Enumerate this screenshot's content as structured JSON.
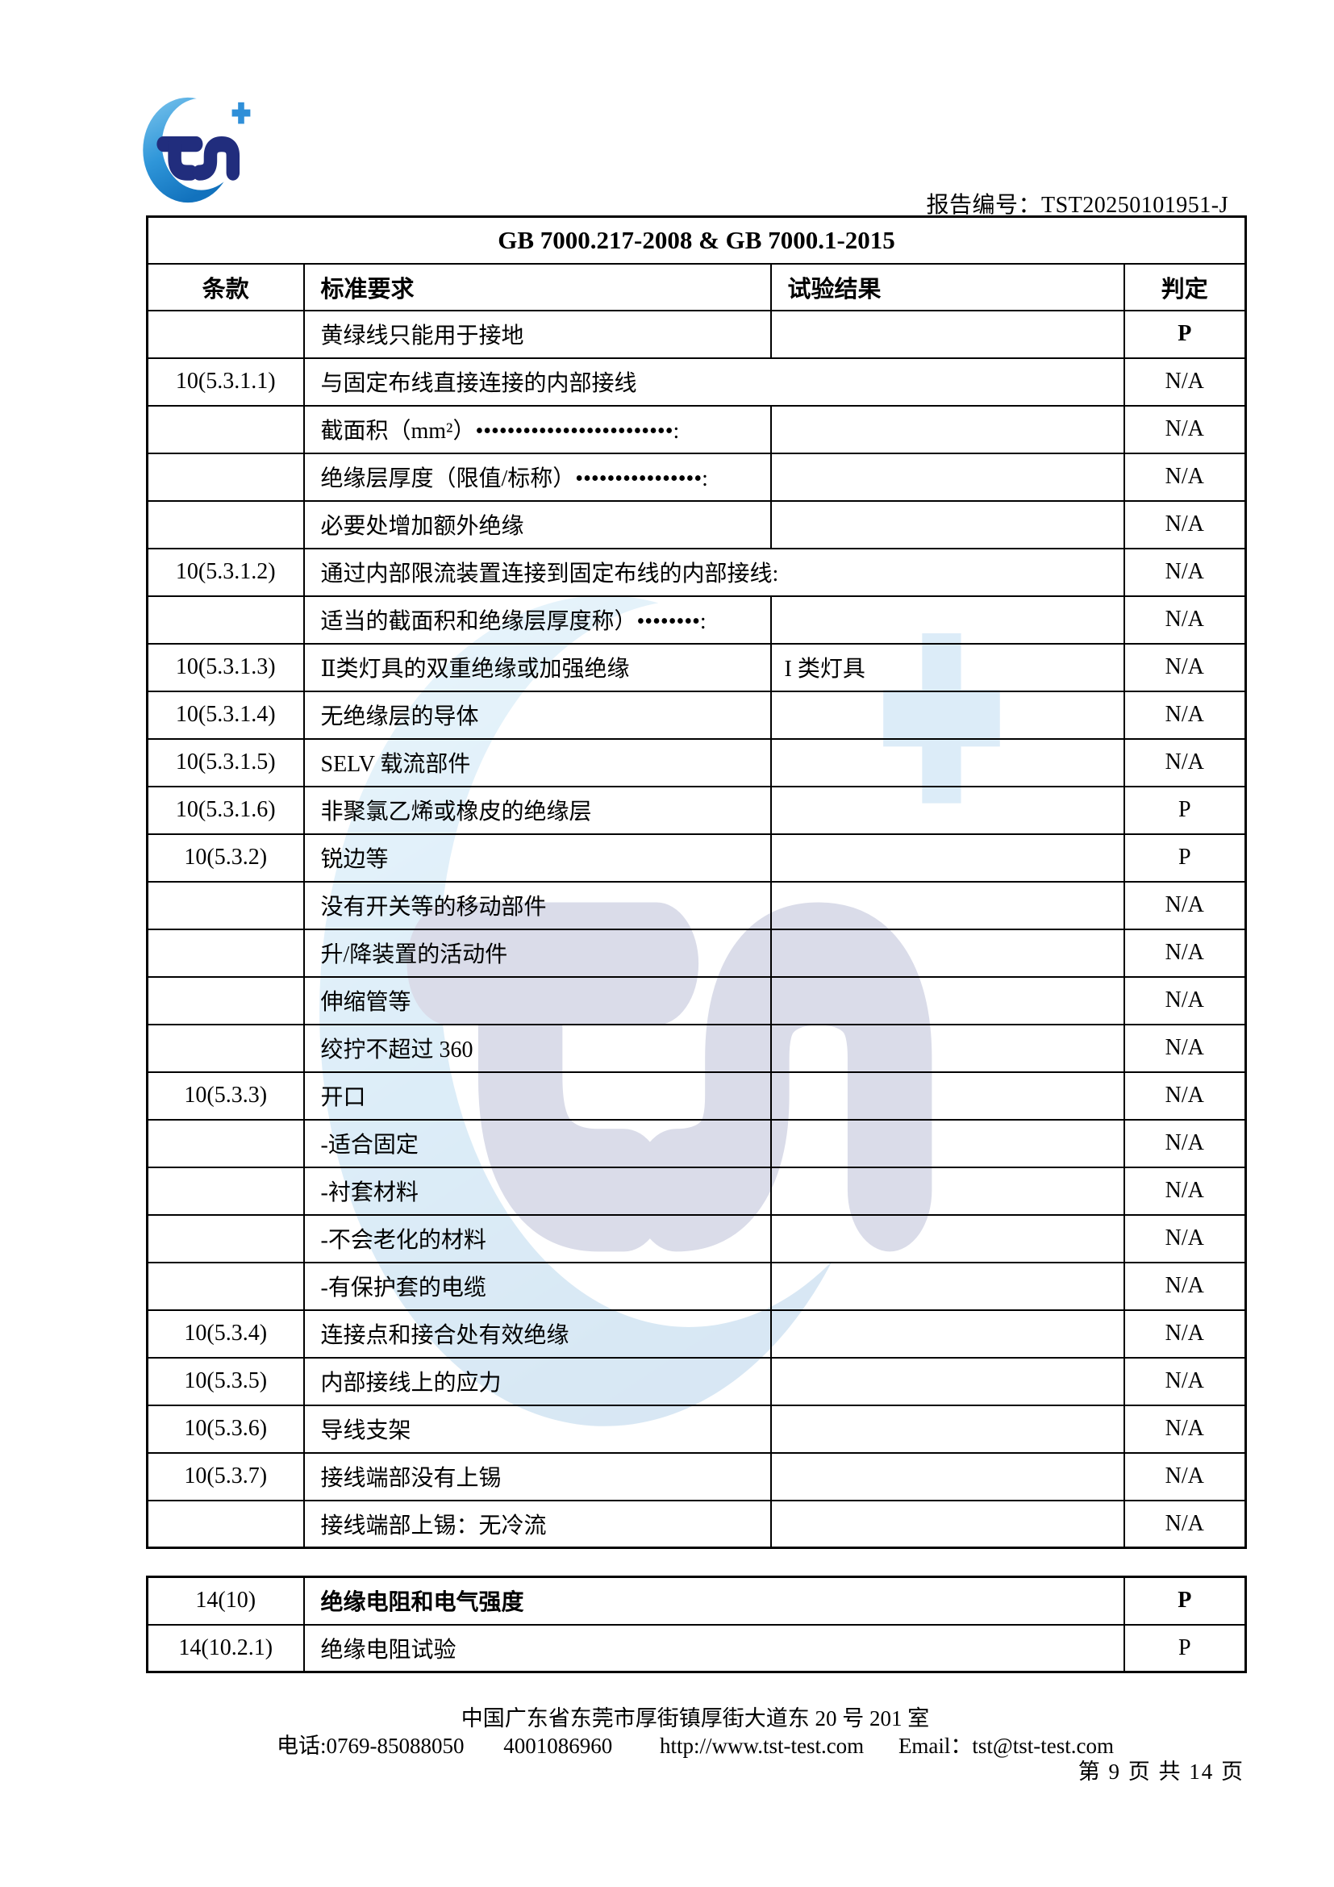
{
  "header": {
    "report_label": "报告编号：",
    "report_no": "TST20250101951-J"
  },
  "logo": {
    "name": "TST certification logo",
    "plus_glyph": "+"
  },
  "colors": {
    "logo_gradient_light": "#7cc5ed",
    "logo_gradient_mid": "#2f96d9",
    "logo_gradient_deep": "#1272bd",
    "logo_monogram_navy": "#212d7d",
    "logo_plus_blue": "#2f8fd8",
    "text_ink": "#000000"
  },
  "table1": {
    "title": "GB 7000.217-2008 & GB 7000.1-2015",
    "columns": [
      "条款",
      "标准要求",
      "试验结果",
      "判定"
    ],
    "rows": [
      {
        "clause": "",
        "req": "黄绿线只能用于接地",
        "result": "",
        "verdict": "P",
        "verdict_bold": true
      },
      {
        "clause": "10(5.3.1.1)",
        "req": "与固定布线直接连接的内部接线",
        "span": true,
        "verdict": "N/A"
      },
      {
        "clause": "",
        "req": "截面积（mm²）•••••••••••••••••••••••••:",
        "result": "",
        "verdict": "N/A"
      },
      {
        "clause": "",
        "req": "绝缘层厚度（限值/标称）••••••••••••••••:",
        "result": "",
        "verdict": "N/A"
      },
      {
        "clause": "",
        "req": "必要处增加额外绝缘",
        "result": "",
        "verdict": "N/A"
      },
      {
        "clause": "10(5.3.1.2)",
        "req": "通过内部限流装置连接到固定布线的内部接线:",
        "span": true,
        "verdict": "N/A"
      },
      {
        "clause": "",
        "req": "适当的截面积和绝缘层厚度称）••••••••:",
        "result": "",
        "verdict": "N/A"
      },
      {
        "clause": "10(5.3.1.3)",
        "req": "Ⅱ类灯具的双重绝缘或加强绝缘",
        "result": "I 类灯具",
        "verdict": "N/A"
      },
      {
        "clause": "10(5.3.1.4)",
        "req": "无绝缘层的导体",
        "result": "",
        "verdict": "N/A"
      },
      {
        "clause": "10(5.3.1.5)",
        "req": "SELV 载流部件",
        "result": "",
        "verdict": "N/A"
      },
      {
        "clause": "10(5.3.1.6)",
        "req": "非聚氯乙烯或橡皮的绝缘层",
        "result": "",
        "verdict": "P"
      },
      {
        "clause": "10(5.3.2)",
        "req": "锐边等",
        "result": "",
        "verdict": "P"
      },
      {
        "clause": "",
        "req": "没有开关等的移动部件",
        "result": "",
        "verdict": "N/A"
      },
      {
        "clause": "",
        "req": "升/降装置的活动件",
        "result": "",
        "verdict": "N/A"
      },
      {
        "clause": "",
        "req": "伸缩管等",
        "result": "",
        "verdict": "N/A"
      },
      {
        "clause": "",
        "req": "绞拧不超过 360",
        "result": "",
        "verdict": "N/A"
      },
      {
        "clause": "10(5.3.3)",
        "req": "开口",
        "result": "",
        "verdict": "N/A"
      },
      {
        "clause": "",
        "req": "-适合固定",
        "result": "",
        "verdict": "N/A"
      },
      {
        "clause": "",
        "req": "-衬套材料",
        "result": "",
        "verdict": "N/A"
      },
      {
        "clause": "",
        "req": "-不会老化的材料",
        "result": "",
        "verdict": "N/A"
      },
      {
        "clause": "",
        "req": "-有保护套的电缆",
        "result": "",
        "verdict": "N/A"
      },
      {
        "clause": "10(5.3.4)",
        "req": "连接点和接合处有效绝缘",
        "result": "",
        "verdict": "N/A"
      },
      {
        "clause": "10(5.3.5)",
        "req": "内部接线上的应力",
        "result": "",
        "verdict": "N/A"
      },
      {
        "clause": "10(5.3.6)",
        "req": "导线支架",
        "result": "",
        "verdict": "N/A"
      },
      {
        "clause": "10(5.3.7)",
        "req": "接线端部没有上锡",
        "result": "",
        "verdict": "N/A"
      },
      {
        "clause": "",
        "req": "接线端部上锡：无冷流",
        "result": "",
        "verdict": "N/A"
      }
    ]
  },
  "table2": {
    "rows": [
      {
        "clause": "14(10)",
        "req": "绝缘电阻和电气强度",
        "verdict": "P",
        "bold": true
      },
      {
        "clause": "14(10.2.1)",
        "req": "绝缘电阻试验",
        "verdict": "P",
        "bold": false
      }
    ]
  },
  "footer": {
    "address": "中国广东省东莞市厚街镇厚街大道东 20 号 201 室",
    "phone": "电话:0769-85088050",
    "hotline": "4001086960",
    "website": "http://www.tst-test.com",
    "email": "Email：tst@tst-test.com",
    "page": "第 9 页 共 14 页"
  }
}
